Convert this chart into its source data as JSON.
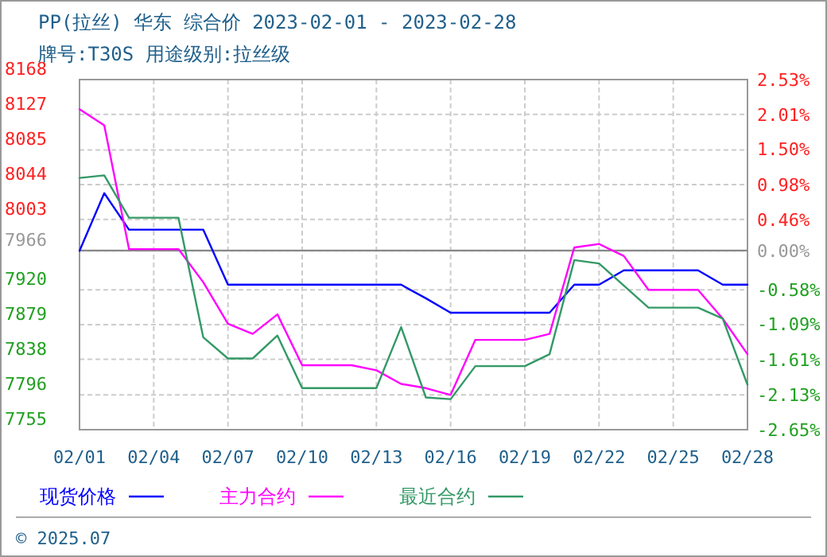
{
  "chart_data": {
    "type": "line",
    "title": "PP(拉丝) 华东 综合价 2023-02-01 - 2023-02-28",
    "subtitle": "牌号:T30S 用途级别:拉丝级",
    "annotations": [
      "© 2025.07"
    ],
    "x": [
      "2023-02-01",
      "2023-02-02",
      "2023-02-03",
      "2023-02-04",
      "2023-02-05",
      "2023-02-06",
      "2023-02-07",
      "2023-02-08",
      "2023-02-09",
      "2023-02-10",
      "2023-02-11",
      "2023-02-12",
      "2023-02-13",
      "2023-02-14",
      "2023-02-15",
      "2023-02-16",
      "2023-02-17",
      "2023-02-18",
      "2023-02-19",
      "2023-02-20",
      "2023-02-21",
      "2023-02-22",
      "2023-02-23",
      "2023-02-24",
      "2023-02-25",
      "2023-02-26",
      "2023-02-27",
      "2023-02-28"
    ],
    "series": [
      {
        "name": "现货价格",
        "color": "#0000ff",
        "values": [
          7966,
          8034,
          7991,
          7991,
          7991,
          7991,
          7926,
          7926,
          7926,
          7926,
          7926,
          7926,
          7926,
          7926,
          7910,
          7893,
          7893,
          7893,
          7893,
          7893,
          7926,
          7926,
          7943,
          7943,
          7943,
          7943,
          7926,
          7926
        ]
      },
      {
        "name": "主力合约",
        "color": "#ff00ff",
        "values": [
          8133,
          8114,
          7968,
          7968,
          7968,
          7929,
          7880,
          7868,
          7891,
          7831,
          7831,
          7831,
          7825,
          7809,
          7804,
          7796,
          7861,
          7861,
          7861,
          7868,
          7970,
          7974,
          7960,
          7920,
          7920,
          7920,
          7886,
          7844
        ]
      },
      {
        "name": "最近合约",
        "color": "#339966",
        "values": [
          8052,
          8055,
          8005,
          8005,
          8005,
          7864,
          7839,
          7839,
          7866,
          7804,
          7804,
          7804,
          7804,
          7876,
          7793,
          7791,
          7830,
          7830,
          7830,
          7844,
          7955,
          7951,
          7925,
          7899,
          7899,
          7899,
          7886,
          7808
        ]
      }
    ],
    "xlim": [
      "2023-02-01",
      "2023-02-28"
    ],
    "xticks": [
      {
        "value": "2023-02-01",
        "label": "02/01"
      },
      {
        "value": "2023-02-04",
        "label": "02/04"
      },
      {
        "value": "2023-02-07",
        "label": "02/07"
      },
      {
        "value": "2023-02-10",
        "label": "02/10"
      },
      {
        "value": "2023-02-13",
        "label": "02/13"
      },
      {
        "value": "2023-02-16",
        "label": "02/16"
      },
      {
        "value": "2023-02-19",
        "label": "02/19"
      },
      {
        "value": "2023-02-22",
        "label": "02/22"
      },
      {
        "value": "2023-02-25",
        "label": "02/25"
      },
      {
        "value": "2023-02-28",
        "label": "02/28"
      }
    ],
    "ylim": [
      7755,
      8168
    ],
    "yticks": [
      7755,
      7796,
      7838,
      7879,
      7920,
      7966,
      8003,
      8044,
      8085,
      8127,
      8168
    ],
    "y2lim": [
      -2.65,
      2.53
    ],
    "y2ticks": [
      {
        "value": -2.65,
        "label": "-2.65%"
      },
      {
        "value": -2.13,
        "label": "-2.13%"
      },
      {
        "value": -1.61,
        "label": "-1.61%"
      },
      {
        "value": -1.09,
        "label": "-1.09%"
      },
      {
        "value": -0.58,
        "label": "-0.58%"
      },
      {
        "value": 0,
        "label": "0.00%"
      },
      {
        "value": 0.46,
        "label": "0.46%"
      },
      {
        "value": 0.98,
        "label": "0.98%"
      },
      {
        "value": 1.5,
        "label": "1.50%"
      },
      {
        "value": 2.01,
        "label": "2.01%"
      },
      {
        "value": 2.53,
        "label": "2.53%"
      }
    ],
    "ref_lines": [
      {
        "axis": "y2",
        "value": 0,
        "color": "#888888"
      }
    ],
    "grid": true,
    "legend": "bottom",
    "marker": "none",
    "line_style": "solid"
  }
}
